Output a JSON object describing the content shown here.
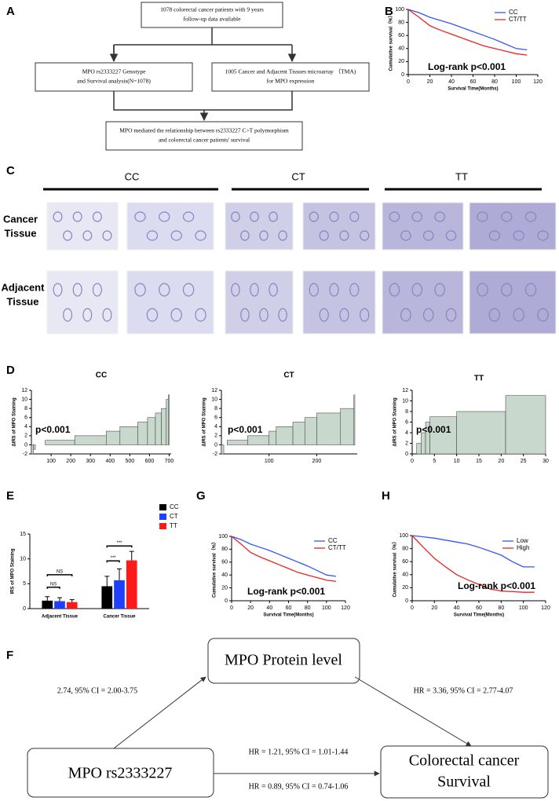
{
  "flowchart": {
    "panel": "A",
    "boxes": [
      {
        "lines": [
          "1078 colorectal cancer patients with 9 years",
          "follow-up data available"
        ]
      },
      {
        "lines": [
          "MPO rs2333227 Genotype",
          "and Survival analysis(N=1078)"
        ]
      },
      {
        "lines": [
          "1005 Cancer and Adjacent Tissues microarray （TMA)",
          "for MPO expression"
        ]
      },
      {
        "lines": [
          "MPO mediated the relationship between rs2333227 C>T polymorphism",
          "and colorectal cancer patients' survival"
        ]
      }
    ]
  },
  "histology": {
    "panel": "C",
    "groups": [
      "CC",
      "CT",
      "TT"
    ],
    "rows": [
      [
        "Cancer",
        "Tissue"
      ],
      [
        "Adjacent",
        "Tissue"
      ]
    ]
  },
  "mediation": {
    "panel": "F",
    "nodes": [
      {
        "lines": [
          "MPO Protein level"
        ]
      },
      {
        "lines": [
          "MPO rs2333227"
        ]
      },
      {
        "lines": [
          "Colorectal cancer",
          "Survival"
        ]
      }
    ],
    "edges": [
      "2.74, 95% CI = 2.00-3.75",
      "HR = 3.36, 95% CI = 2.77-4.07",
      "HR = 1.21, 95% CI = 1.01-1.44",
      "HR = 0.89, 95% CI = 0.74-1.06"
    ]
  },
  "chart_data": [
    {
      "type": "line",
      "panel": "B",
      "xlabel": "Survival Time(Months)",
      "ylabel": "Cumulative survival（%）",
      "annotations": [
        "Log-rank p<0.001"
      ],
      "x": [
        0,
        10,
        20,
        30,
        40,
        50,
        60,
        70,
        80,
        90,
        100,
        110
      ],
      "xlim": [
        0,
        120
      ],
      "xticks": [
        0,
        20,
        40,
        60,
        80,
        100,
        120
      ],
      "ylim": [
        0,
        100
      ],
      "yticks": [
        0,
        20,
        40,
        60,
        80,
        100
      ],
      "legend": "upper right",
      "series": [
        {
          "name": "CC",
          "color": "#3355ff",
          "values": [
            100,
            95,
            88,
            83,
            78,
            72,
            66,
            60,
            54,
            47,
            40,
            38
          ]
        },
        {
          "name": "CT/TT",
          "color": "#ee2222",
          "values": [
            100,
            88,
            75,
            68,
            62,
            56,
            50,
            44,
            40,
            36,
            32,
            30
          ]
        }
      ]
    },
    {
      "type": "histogram",
      "panel": "D",
      "title": "CC",
      "ylabel": "ΔIRS of MPO Staining",
      "annotations": [
        "p<0.001"
      ],
      "bins": [
        0,
        10,
        20,
        70,
        220,
        380,
        450,
        540,
        590,
        630,
        660,
        685,
        695,
        700
      ],
      "values": [
        -2,
        -1,
        0,
        1,
        2,
        3,
        4,
        5,
        6,
        7,
        8,
        10,
        11
      ],
      "xlim": [
        0,
        710
      ],
      "xticks": [
        100,
        200,
        300,
        400,
        500,
        600,
        700
      ],
      "ylim": [
        -2,
        12
      ],
      "yticks": [
        -2,
        0,
        2,
        4,
        6,
        8,
        10,
        12
      ],
      "color": "#c8d8cc"
    },
    {
      "type": "histogram",
      "title": "CT",
      "ylabel": "ΔIRS of MPO Staining",
      "annotations": [
        "p<0.001"
      ],
      "bins": [
        0,
        5,
        12,
        55,
        100,
        115,
        150,
        175,
        200,
        250,
        278,
        280
      ],
      "values": [
        -2,
        0,
        1,
        2,
        3,
        4,
        5,
        6,
        7,
        8,
        11
      ],
      "xlim": [
        0,
        285
      ],
      "xticks": [
        100,
        200
      ],
      "ylim": [
        -2,
        12
      ],
      "yticks": [
        -2,
        0,
        2,
        4,
        6,
        8,
        10,
        12
      ],
      "color": "#c8d8cc"
    },
    {
      "type": "histogram",
      "title": "TT",
      "ylabel": "ΔIRS of MPO Staining",
      "annotations": [
        "p<0.001"
      ],
      "bins": [
        1,
        2,
        3,
        4,
        10,
        21,
        30
      ],
      "values": [
        2,
        4,
        6,
        7,
        8,
        11
      ],
      "xlim": [
        0,
        30
      ],
      "xticks": [
        0,
        5,
        10,
        15,
        20,
        25,
        30
      ],
      "ylim": [
        0,
        12
      ],
      "yticks": [
        0,
        2,
        4,
        6,
        8,
        10,
        12
      ],
      "color": "#c8d8cc"
    },
    {
      "type": "grouped_bar",
      "panel": "E",
      "ylabel": "IRS of MPO Staining",
      "categories": [
        "Adjacent Tissue",
        "Cancer Tissue"
      ],
      "ylim": [
        0,
        15
      ],
      "yticks": [
        0,
        5,
        10,
        15
      ],
      "legend": "upper right",
      "annotations": [
        "NS",
        "NS",
        "***",
        "***"
      ],
      "series": [
        {
          "name": "CC",
          "color": "#000000",
          "values": [
            1.6,
            4.5
          ],
          "errors": [
            0.8,
            2.0
          ]
        },
        {
          "name": "CT",
          "color": "#1f3fff",
          "values": [
            1.5,
            5.7
          ],
          "errors": [
            0.7,
            2.3
          ]
        },
        {
          "name": "TT",
          "color": "#ff1a1a",
          "values": [
            1.3,
            9.7
          ],
          "errors": [
            0.5,
            1.8
          ]
        }
      ]
    },
    {
      "type": "line",
      "panel": "G",
      "xlabel": "Survival Time(Months)",
      "ylabel": "Cumulative survival（%）",
      "annotations": [
        "Log-rank p<0.001"
      ],
      "x": [
        0,
        10,
        20,
        30,
        40,
        50,
        60,
        70,
        80,
        90,
        100,
        110
      ],
      "xlim": [
        0,
        120
      ],
      "xticks": [
        0,
        20,
        40,
        60,
        80,
        100,
        120
      ],
      "ylim": [
        0,
        100
      ],
      "yticks": [
        0,
        20,
        40,
        60,
        80,
        100
      ],
      "legend": "upper right",
      "series": [
        {
          "name": "CC",
          "color": "#3355ff",
          "values": [
            100,
            95,
            88,
            83,
            78,
            72,
            66,
            60,
            54,
            47,
            40,
            38
          ]
        },
        {
          "name": "CT/TT",
          "color": "#ee2222",
          "values": [
            100,
            88,
            75,
            68,
            62,
            56,
            50,
            44,
            40,
            36,
            32,
            30
          ]
        }
      ]
    },
    {
      "type": "line",
      "panel": "H",
      "xlabel": "Survival Time(Months)",
      "ylabel": "Cumulative survival（%）",
      "annotations": [
        "Log-rank p<0.001"
      ],
      "x": [
        0,
        10,
        20,
        30,
        40,
        50,
        60,
        70,
        80,
        90,
        100,
        110
      ],
      "xlim": [
        0,
        120
      ],
      "xticks": [
        0,
        20,
        40,
        60,
        80,
        100,
        120
      ],
      "ylim": [
        0,
        100
      ],
      "yticks": [
        0,
        20,
        40,
        60,
        80,
        100
      ],
      "legend": "upper right",
      "series": [
        {
          "name": "Low",
          "color": "#3355ff",
          "values": [
            100,
            98,
            96,
            93,
            90,
            87,
            82,
            76,
            70,
            60,
            52,
            52
          ]
        },
        {
          "name": "High",
          "color": "#ee2222",
          "values": [
            100,
            82,
            65,
            52,
            40,
            32,
            25,
            18,
            15,
            14,
            13,
            13
          ]
        }
      ]
    }
  ]
}
